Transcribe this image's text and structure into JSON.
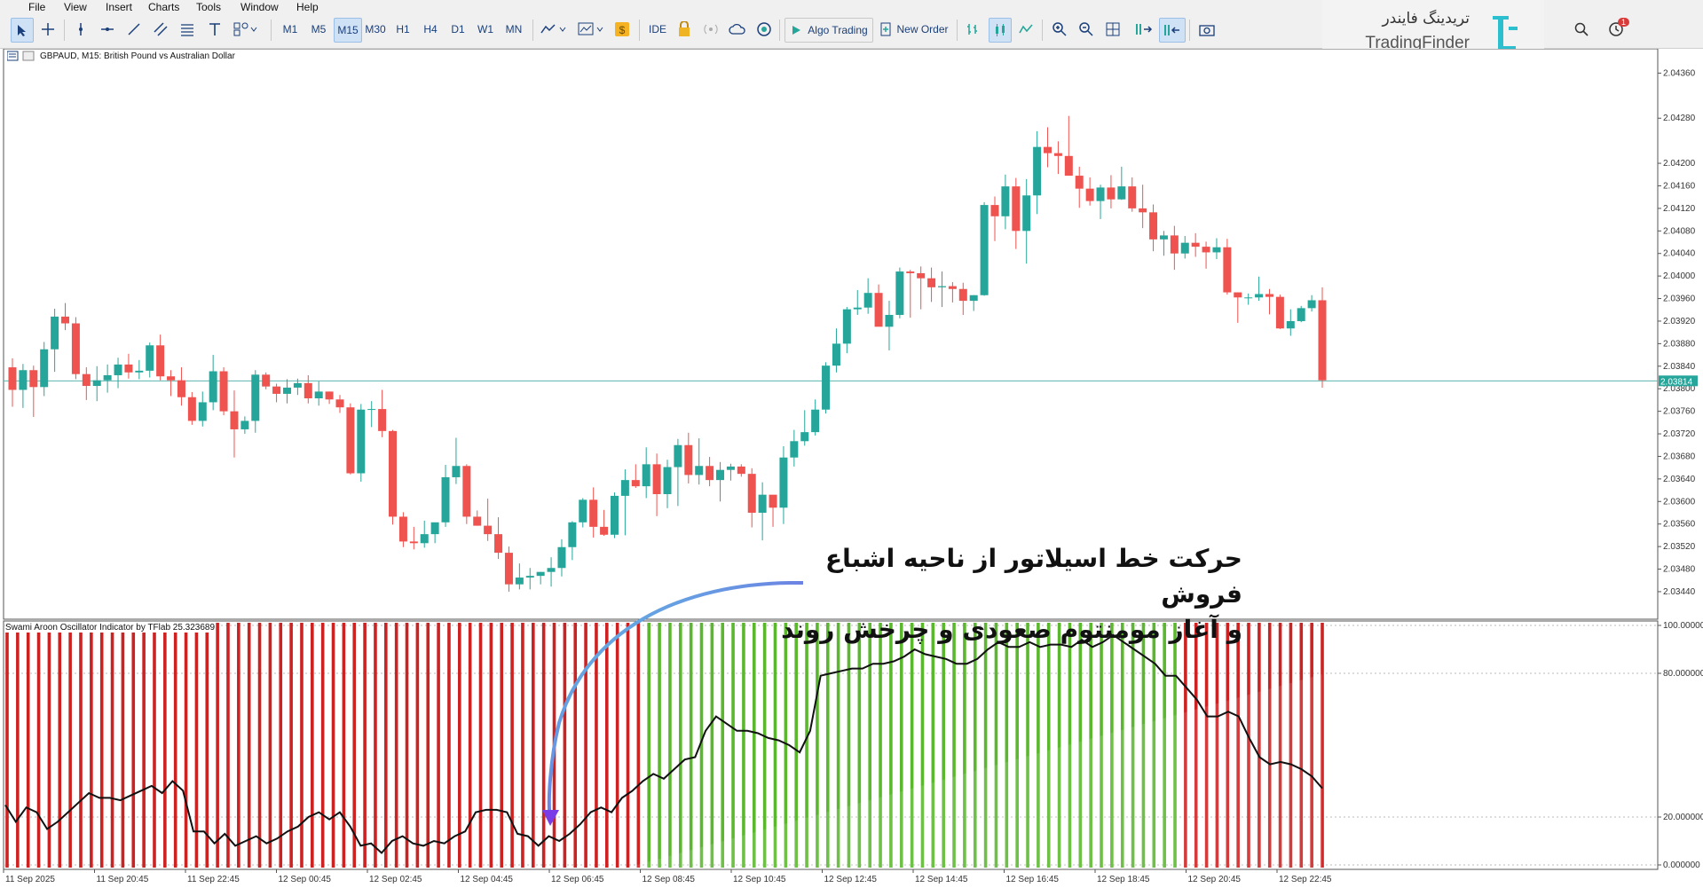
{
  "menu": [
    "File",
    "View",
    "Insert",
    "Charts",
    "Tools",
    "Window",
    "Help"
  ],
  "toolbar": {
    "timeframes": [
      "M1",
      "M5",
      "M15",
      "M30",
      "H1",
      "H4",
      "D1",
      "W1",
      "MN"
    ],
    "active_timeframe": "M15",
    "ide_label": "IDE",
    "algo_label": "Algo Trading",
    "order_label": "New Order",
    "icons": [
      "cursor-icon",
      "crosshair-icon",
      "vertical-line-icon",
      "horizontal-line-icon",
      "trendline-icon",
      "channel-icon",
      "fibonacci-icon",
      "text-icon",
      "shapes-icon",
      "indicators-icon",
      "templates-icon",
      "dollar-icon",
      "lock-icon",
      "signal-icon",
      "cloud-icon",
      "vps-icon",
      "play-icon",
      "new-order-icon",
      "bar-chart-icon",
      "candles-icon",
      "line-chart-icon",
      "zoom-in-icon",
      "zoom-out-icon",
      "grid-icon",
      "autoscroll-icon",
      "chart-shift-icon",
      "screenshot-icon",
      "search-icon",
      "alerts-icon"
    ],
    "notification_count": "1"
  },
  "watermark": {
    "persian": "تریدینگ فایندر",
    "english": "TradingFinder"
  },
  "chart": {
    "title": "GBPAUD, M15:  British Pound vs Australian Dollar",
    "price_labels": [
      "2.04360",
      "2.04280",
      "2.04200",
      "2.04160",
      "2.04120",
      "2.04080",
      "2.04040",
      "2.04000",
      "2.03960",
      "2.03920",
      "2.03880",
      "2.03840",
      "2.03800",
      "2.03760",
      "2.03720",
      "2.03680",
      "2.03640",
      "2.03600",
      "2.03560",
      "2.03520",
      "2.03480",
      "2.03440"
    ],
    "current_price": "2.03814",
    "up_color": "#26a69a",
    "down_color": "#ef5350",
    "candles_ohlc": [
      [
        2.03838,
        2.03854,
        2.03768,
        2.03798
      ],
      [
        2.03798,
        2.03844,
        2.03766,
        2.03833
      ],
      [
        2.03833,
        2.03841,
        2.0375,
        2.03803
      ],
      [
        2.03803,
        2.03883,
        2.03787,
        2.0387
      ],
      [
        2.0387,
        2.03942,
        2.0383,
        2.03928
      ],
      [
        2.03928,
        2.03952,
        2.03904,
        2.03916
      ],
      [
        2.03916,
        2.03927,
        2.03817,
        2.03826
      ],
      [
        2.03826,
        2.03838,
        2.0378,
        2.03805
      ],
      [
        2.03805,
        2.0384,
        2.03778,
        2.03815
      ],
      [
        2.03815,
        2.03843,
        2.03793,
        2.03824
      ],
      [
        2.03824,
        2.03855,
        2.03801,
        2.03843
      ],
      [
        2.03843,
        2.03862,
        2.03818,
        2.03829
      ],
      [
        2.03829,
        2.03851,
        2.03817,
        2.03832
      ],
      [
        2.03832,
        2.03882,
        2.0382,
        2.03877
      ],
      [
        2.03877,
        2.03896,
        2.03815,
        2.03822
      ],
      [
        2.03822,
        2.03833,
        2.03787,
        2.03815
      ],
      [
        2.03815,
        2.03838,
        2.0377,
        2.03785
      ],
      [
        2.03785,
        2.03794,
        2.03736,
        2.03743
      ],
      [
        2.03743,
        2.03795,
        2.03733,
        2.03776
      ],
      [
        2.03776,
        2.0386,
        2.03762,
        2.03831
      ],
      [
        2.03831,
        2.03838,
        2.03753,
        2.0376
      ],
      [
        2.0376,
        2.03797,
        2.03678,
        2.03728
      ],
      [
        2.03728,
        2.03751,
        2.0372,
        2.03743
      ],
      [
        2.03743,
        2.03833,
        2.03722,
        2.03825
      ],
      [
        2.03825,
        2.03829,
        2.03799,
        2.03804
      ],
      [
        2.03804,
        2.03809,
        2.03776,
        2.03791
      ],
      [
        2.03791,
        2.03817,
        2.03774,
        2.03802
      ],
      [
        2.03802,
        2.03818,
        2.03789,
        2.0381
      ],
      [
        2.0381,
        2.03824,
        2.03774,
        2.03783
      ],
      [
        2.03783,
        2.03813,
        2.0377,
        2.03795
      ],
      [
        2.03795,
        2.03795,
        2.03773,
        2.03781
      ],
      [
        2.03781,
        2.03789,
        2.03757,
        2.03767
      ],
      [
        2.03767,
        2.03774,
        2.03648,
        2.0365
      ],
      [
        2.0365,
        2.03773,
        2.03635,
        2.03763
      ],
      [
        2.03763,
        2.03778,
        2.03732,
        2.03764
      ],
      [
        2.03764,
        2.03798,
        2.03714,
        2.03725
      ],
      [
        2.03725,
        2.03727,
        2.03559,
        2.03573
      ],
      [
        2.03573,
        2.03581,
        2.03519,
        2.03529
      ],
      [
        2.03529,
        2.03555,
        2.03515,
        2.03526
      ],
      [
        2.03526,
        2.03566,
        2.03518,
        2.03542
      ],
      [
        2.03542,
        2.03561,
        2.03526,
        2.03563
      ],
      [
        2.03563,
        2.03665,
        2.03555,
        2.03643
      ],
      [
        2.03643,
        2.03713,
        2.03631,
        2.03663
      ],
      [
        2.03663,
        2.03666,
        2.0356,
        2.03573
      ],
      [
        2.03573,
        2.03584,
        2.03557,
        2.03557
      ],
      [
        2.03557,
        2.03605,
        2.0353,
        2.03542
      ],
      [
        2.03542,
        2.03572,
        2.03498,
        2.03509
      ],
      [
        2.03509,
        2.0352,
        2.0344,
        2.03453
      ],
      [
        2.03453,
        2.0349,
        2.03444,
        2.03465
      ],
      [
        2.03465,
        2.03482,
        2.03444,
        2.03468
      ],
      [
        2.03468,
        2.03475,
        2.03453,
        2.03475
      ],
      [
        2.03475,
        2.03501,
        2.03449,
        2.03482
      ],
      [
        2.03482,
        2.03533,
        2.03467,
        2.03519
      ],
      [
        2.03519,
        2.03565,
        2.03496,
        2.03563
      ],
      [
        2.03563,
        2.03606,
        2.03554,
        2.03603
      ],
      [
        2.03603,
        2.03625,
        2.03536,
        2.03555
      ],
      [
        2.03555,
        2.03585,
        2.03539,
        2.03541
      ],
      [
        2.03541,
        2.03616,
        2.03535,
        2.0361
      ],
      [
        2.0361,
        2.03657,
        2.0354,
        2.03638
      ],
      [
        2.03638,
        2.03666,
        2.03624,
        2.03627
      ],
      [
        2.03627,
        2.03696,
        2.03606,
        2.03666
      ],
      [
        2.03666,
        2.03685,
        2.03574,
        2.03613
      ],
      [
        2.03613,
        2.03674,
        2.03588,
        2.03661
      ],
      [
        2.03661,
        2.03711,
        2.03592,
        2.037
      ],
      [
        2.037,
        2.03722,
        2.03632,
        2.03647
      ],
      [
        2.03647,
        2.03712,
        2.0363,
        2.03663
      ],
      [
        2.03663,
        2.03679,
        2.03627,
        2.03638
      ],
      [
        2.03638,
        2.0367,
        2.036,
        2.03656
      ],
      [
        2.03656,
        2.03667,
        2.03637,
        2.03662
      ],
      [
        2.03662,
        2.03666,
        2.03644,
        2.03649
      ],
      [
        2.03649,
        2.03659,
        2.03554,
        2.0358
      ],
      [
        2.0358,
        2.03634,
        2.03531,
        2.03612
      ],
      [
        2.03612,
        2.03606,
        2.03555,
        2.03589
      ],
      [
        2.03589,
        2.03698,
        2.0356,
        2.03678
      ],
      [
        2.03678,
        2.03727,
        2.03662,
        2.03707
      ],
      [
        2.03707,
        2.03762,
        2.03699,
        2.03723
      ],
      [
        2.03723,
        2.03781,
        2.03717,
        2.03763
      ],
      [
        2.03763,
        2.03847,
        2.03756,
        2.03841
      ],
      [
        2.03841,
        2.03907,
        2.03829,
        2.0388
      ],
      [
        2.0388,
        2.03945,
        2.03863,
        2.03941
      ],
      [
        2.03941,
        2.03975,
        2.03931,
        2.03944
      ],
      [
        2.03944,
        2.03996,
        2.03933,
        2.0397
      ],
      [
        2.0397,
        2.03985,
        2.03935,
        2.0391
      ],
      [
        2.0391,
        2.03956,
        2.03868,
        2.03931
      ],
      [
        2.03931,
        2.04015,
        2.03925,
        2.04008
      ],
      [
        2.04008,
        2.04011,
        2.03926,
        2.04005
      ],
      [
        2.04005,
        2.04017,
        2.03941,
        2.03996
      ],
      [
        2.03996,
        2.04015,
        2.03954,
        2.0398
      ],
      [
        2.0398,
        2.04008,
        2.03945,
        2.03982
      ],
      [
        2.03982,
        2.03989,
        2.03953,
        2.03977
      ],
      [
        2.03977,
        2.03988,
        2.03931,
        2.03956
      ],
      [
        2.03956,
        2.03966,
        2.03938,
        2.03966
      ],
      [
        2.03966,
        2.04131,
        2.03965,
        2.04126
      ],
      [
        2.04126,
        2.04141,
        2.04062,
        2.04106
      ],
      [
        2.04106,
        2.0418,
        2.04083,
        2.04159
      ],
      [
        2.04159,
        2.04174,
        2.04048,
        2.0408
      ],
      [
        2.0408,
        2.04172,
        2.04022,
        2.04143
      ],
      [
        2.04143,
        2.04257,
        2.0411,
        2.04229
      ],
      [
        2.04229,
        2.04264,
        2.04193,
        2.04218
      ],
      [
        2.04218,
        2.04239,
        2.04181,
        2.04213
      ],
      [
        2.04213,
        2.04284,
        2.0419,
        2.04178
      ],
      [
        2.04178,
        2.04194,
        2.04121,
        2.04155
      ],
      [
        2.04155,
        2.04175,
        2.04125,
        2.04133
      ],
      [
        2.04133,
        2.04162,
        2.04101,
        2.04157
      ],
      [
        2.04157,
        2.04179,
        2.0412,
        2.04136
      ],
      [
        2.04136,
        2.04194,
        2.04135,
        2.04159
      ],
      [
        2.04159,
        2.04175,
        2.04114,
        2.0412
      ],
      [
        2.0412,
        2.04162,
        2.04085,
        2.04113
      ],
      [
        2.04113,
        2.04127,
        2.04044,
        2.04065
      ],
      [
        2.04065,
        2.0408,
        2.04036,
        2.04072
      ],
      [
        2.04072,
        2.04089,
        2.04011,
        2.0404
      ],
      [
        2.0404,
        2.04071,
        2.04031,
        2.04059
      ],
      [
        2.04059,
        2.04076,
        2.04034,
        2.04052
      ],
      [
        2.04052,
        2.04061,
        2.04013,
        2.04042
      ],
      [
        2.04042,
        2.04067,
        2.0403,
        2.04051
      ],
      [
        2.04051,
        2.04066,
        2.03967,
        2.03971
      ],
      [
        2.03971,
        2.03971,
        2.03917,
        2.03962
      ],
      [
        2.03962,
        2.03969,
        2.03949,
        2.03962
      ],
      [
        2.03962,
        2.03999,
        2.03956,
        2.03968
      ],
      [
        2.03968,
        2.03977,
        2.03932,
        2.03963
      ],
      [
        2.03963,
        2.03967,
        2.03906,
        2.03907
      ],
      [
        2.03907,
        2.03941,
        2.03894,
        2.0392
      ],
      [
        2.0392,
        2.03947,
        2.03918,
        2.03943
      ],
      [
        2.03943,
        2.03966,
        2.03937,
        2.03957
      ],
      [
        2.03957,
        2.0398,
        2.03802,
        2.03815
      ]
    ],
    "time_labels": [
      "11 Sep 2025",
      "11 Sep 20:45",
      "11 Sep 22:45",
      "12 Sep 00:45",
      "12 Sep 02:45",
      "12 Sep 04:45",
      "12 Sep 06:45",
      "12 Sep 08:45",
      "12 Sep 10:45",
      "12 Sep 12:45",
      "12 Sep 14:45",
      "12 Sep 16:45",
      "12 Sep 18:45",
      "12 Sep 20:45",
      "12 Sep 22:45"
    ]
  },
  "indicator": {
    "title": "Swami Aroon Oscillator Indicator by TFlab 25.323689",
    "levels": [
      "100.000000",
      "80.000000",
      "20.000000",
      "0.000000"
    ],
    "red_color": "#cc2222",
    "green_color": "#5bb82e",
    "oscillator_values": [
      25,
      18,
      24,
      22,
      15,
      18,
      22,
      26,
      30,
      28,
      28,
      27,
      29,
      31,
      33,
      30,
      35,
      31,
      14,
      14,
      9,
      13,
      8,
      10,
      12,
      9,
      11,
      14,
      16,
      20,
      22,
      19,
      22,
      16,
      8,
      9,
      5,
      10,
      12,
      9,
      8,
      10,
      9,
      12,
      14,
      22,
      23,
      23,
      22,
      13,
      12,
      8,
      12,
      10,
      13,
      17,
      22,
      24,
      22,
      28,
      31,
      35,
      38,
      36,
      40,
      44,
      45,
      56,
      62,
      59,
      56,
      56,
      55,
      53,
      52,
      50,
      47,
      56,
      79,
      80,
      81,
      82,
      82,
      84,
      84,
      85,
      87,
      90,
      88,
      87,
      86,
      84,
      84,
      86,
      90,
      93,
      91,
      91,
      93,
      91,
      92,
      92,
      91,
      94,
      91,
      93,
      96,
      93,
      90,
      87,
      84,
      79,
      79,
      74,
      69,
      62,
      62,
      64,
      62,
      53,
      45,
      42,
      43,
      42,
      40,
      37,
      32
    ],
    "histogram_colors": "r,r,r,r,r,r,r,r,r,r,r,r,r,r,r,r,r,r,r,r,r,r,r,r,r,r,r,r,r,r,r,r,r,r,r,r,r,r,r,r,r,r,r,r,r,r,r,r,r,r,r,r,r,r,r,r,r,r,r,r,r,g,g,g,g,g,g,g,g,g,g,g,g,g,g,g,g,g,g,g,g,g,g,g,g,g,g,g,g,g,g,g,g,g,g,g,g,g,g,g,g,g,g,g,g,g,g,g,g,g,g,g,r,r,r,r,r,r,r,r,r,r,r,r,r,r"
  },
  "annotation": {
    "line1": "حرکت خط اسیلاتور از ناحیه اشباع فروش",
    "line2": "و آغاز مومنتوم صعودی و چرخش روند"
  }
}
